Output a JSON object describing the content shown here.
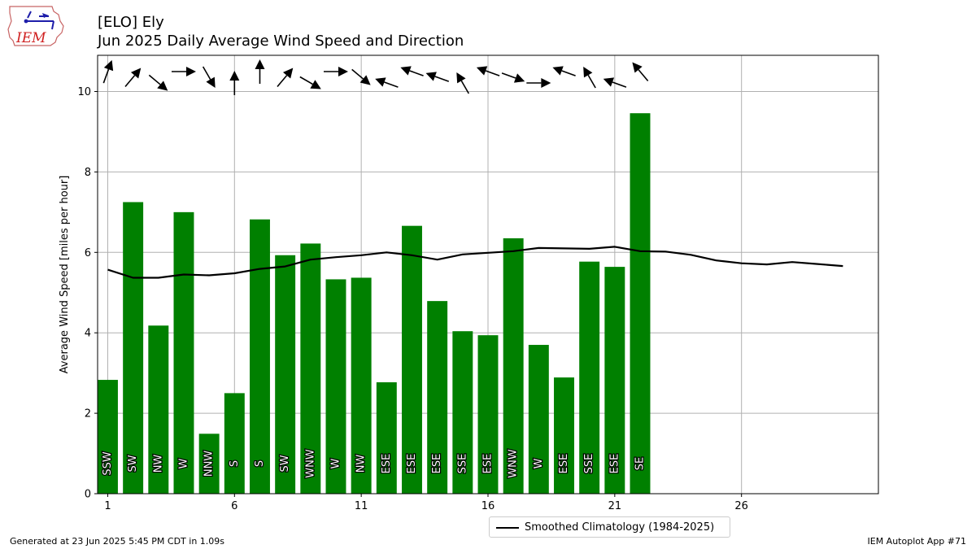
{
  "title_line1": "[ELO] Ely",
  "title_line2": "Jun 2025 Daily Average Wind Speed and Direction",
  "logo_text": "IEM",
  "footer_left": "Generated at 23 Jun 2025 5:45 PM CDT in 1.09s",
  "footer_right": "IEM Autoplot App #71",
  "legend_label": "Smoothed Climatology (1984-2025)",
  "colors": {
    "bar": "#008000",
    "climo": "#000000",
    "grid": "#b0b0b0"
  },
  "chart_data": {
    "type": "bar",
    "xlabel": "",
    "ylabel": "Average Wind Speed [miles per hour]",
    "xlim": [
      0.6,
      31.4
    ],
    "ylim": [
      0,
      10.9
    ],
    "xticks": [
      1,
      6,
      11,
      16,
      21,
      26
    ],
    "yticks": [
      0,
      2,
      4,
      6,
      8,
      10
    ],
    "grid": true,
    "legend_position": "bottom-center",
    "days": [
      1,
      2,
      3,
      4,
      5,
      6,
      7,
      8,
      9,
      10,
      11,
      12,
      13,
      14,
      15,
      16,
      17,
      18,
      19,
      20,
      21,
      22
    ],
    "values": [
      2.83,
      7.25,
      4.18,
      7.0,
      1.49,
      2.5,
      6.82,
      5.93,
      6.22,
      5.33,
      5.37,
      2.77,
      6.66,
      4.79,
      4.04,
      3.94,
      6.35,
      3.7,
      2.89,
      5.77,
      5.64,
      9.46
    ],
    "directions": [
      "SSW",
      "SW",
      "NW",
      "W",
      "NNW",
      "S",
      "S",
      "SW",
      "WNW",
      "W",
      "NW",
      "ESE",
      "ESE",
      "ESE",
      "SSE",
      "ESE",
      "WNW",
      "W",
      "ESE",
      "SSE",
      "ESE",
      "SE"
    ],
    "arrow_angles_deg": [
      200,
      220,
      310,
      270,
      330,
      180,
      180,
      220,
      300,
      270,
      310,
      110,
      110,
      110,
      150,
      110,
      290,
      270,
      110,
      150,
      110,
      140
    ],
    "series": [
      {
        "name": "Smoothed Climatology (1984-2025)",
        "x": [
          1,
          2,
          3,
          4,
          5,
          6,
          7,
          8,
          9,
          10,
          11,
          12,
          13,
          14,
          15,
          16,
          17,
          18,
          19,
          20,
          21,
          22,
          23,
          24,
          25,
          26,
          27,
          28,
          29,
          30
        ],
        "values": [
          5.57,
          5.37,
          5.37,
          5.45,
          5.43,
          5.48,
          5.59,
          5.65,
          5.82,
          5.88,
          5.93,
          6.0,
          5.93,
          5.82,
          5.95,
          5.99,
          6.03,
          6.11,
          6.1,
          6.09,
          6.14,
          6.03,
          6.02,
          5.94,
          5.8,
          5.73,
          5.7,
          5.76,
          5.71,
          5.66
        ]
      }
    ]
  }
}
